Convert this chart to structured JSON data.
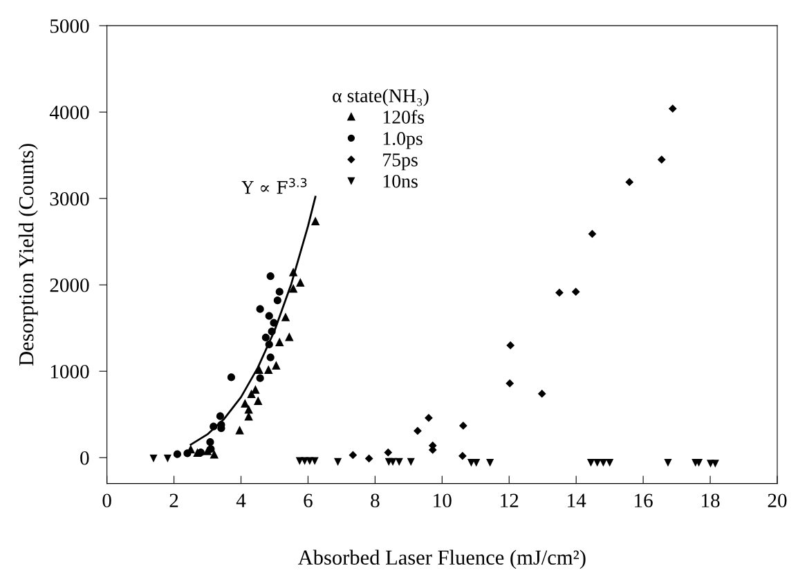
{
  "chart_data": {
    "type": "scatter",
    "xlabel": "Absorbed Laser Fluence (mJ/cm²)",
    "ylabel": "Desorption Yield (Counts)",
    "xlim": [
      0,
      20
    ],
    "xticks": [
      0,
      2,
      4,
      6,
      8,
      10,
      12,
      14,
      16,
      18,
      20
    ],
    "ylim": [
      -300,
      5000
    ],
    "yticks": [
      0,
      1000,
      2000,
      3000,
      4000,
      5000
    ],
    "grid": false,
    "legend": "top center",
    "legend_title": "α state(NH₃)",
    "annotations": [
      "Y ∝ F$^{3.3}$"
    ],
    "series": [
      {
        "name": "120fs",
        "color": "#000000",
        "marker": "triangle",
        "x": [
          6.22,
          5.56,
          5.77,
          5.56,
          5.33,
          5.44,
          5.15,
          5.05,
          4.82,
          4.54,
          4.43,
          4.51,
          4.31,
          4.12,
          4.23,
          4.23,
          3.96,
          2.5,
          2.7,
          3.0,
          3.2
        ],
        "values": [
          2740,
          2150,
          2030,
          1960,
          1630,
          1400,
          1340,
          1070,
          1020,
          1020,
          790,
          660,
          740,
          630,
          560,
          480,
          320,
          100,
          60,
          80,
          40
        ]
      },
      {
        "name": "1.0ps",
        "color": "#000000",
        "marker": "circle",
        "x": [
          4.88,
          5.15,
          5.09,
          4.57,
          4.84,
          4.98,
          4.92,
          4.74,
          4.84,
          4.88,
          4.57,
          3.71,
          3.38,
          3.18,
          3.41,
          3.41,
          3.08,
          2.1,
          2.4,
          2.8,
          3.1
        ],
        "values": [
          2100,
          1920,
          1820,
          1720,
          1640,
          1560,
          1460,
          1390,
          1310,
          1160,
          920,
          930,
          480,
          360,
          380,
          340,
          180,
          40,
          50,
          60,
          100
        ]
      },
      {
        "name": "75ps",
        "color": "#000000",
        "marker": "diamond",
        "x": [
          16.88,
          16.55,
          15.59,
          14.48,
          13.5,
          13.99,
          12.04,
          12.02,
          12.98,
          9.6,
          9.27,
          10.63,
          9.72,
          9.72,
          10.61,
          7.34,
          7.82,
          8.39
        ],
        "values": [
          4040,
          3450,
          3190,
          2590,
          1910,
          1920,
          1300,
          860,
          740,
          460,
          310,
          370,
          140,
          90,
          20,
          30,
          -10,
          60
        ]
      },
      {
        "name": "10ns",
        "color": "#000000",
        "marker": "triangle-down",
        "x": [
          1.39,
          1.81,
          5.75,
          5.9,
          6.05,
          6.2,
          6.89,
          8.41,
          8.53,
          8.72,
          9.07,
          10.87,
          11.02,
          11.43,
          14.44,
          14.63,
          14.81,
          15.0,
          16.74,
          17.56,
          17.66,
          18.01,
          18.15
        ],
        "values": [
          -10,
          -10,
          -40,
          -40,
          -40,
          -40,
          -50,
          -50,
          -50,
          -50,
          -50,
          -60,
          -60,
          -60,
          -60,
          -60,
          -60,
          -60,
          -60,
          -60,
          -60,
          -70,
          -70
        ]
      },
      {
        "type": "line",
        "color": "#000000",
        "line_style": "solid",
        "x": [
          2.5,
          3.0,
          3.5,
          4.0,
          4.5,
          5.0,
          5.5,
          6.0,
          6.22
        ],
        "values": [
          150,
          270,
          450,
          700,
          1040,
          1470,
          2010,
          2680,
          3020
        ]
      }
    ]
  }
}
